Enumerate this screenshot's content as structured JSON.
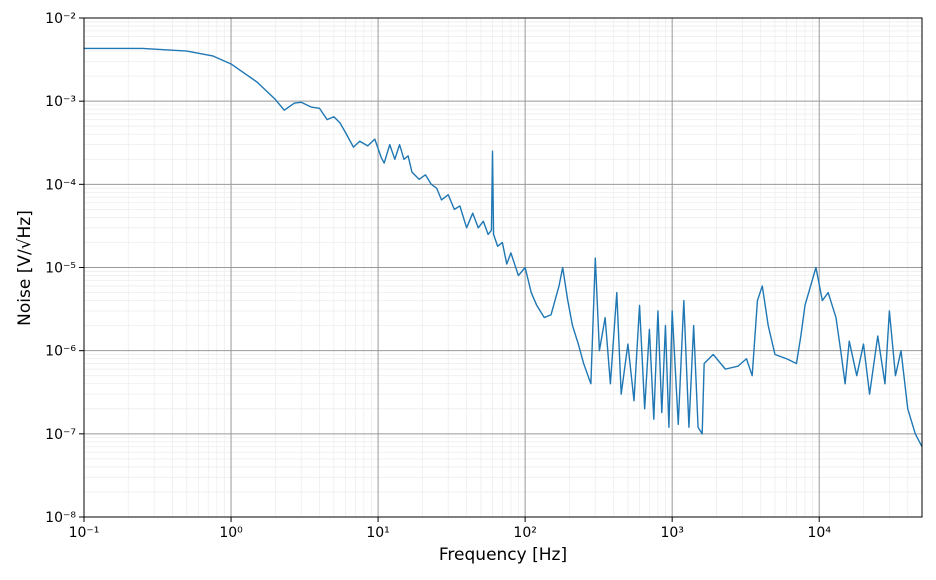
{
  "chart_data": {
    "type": "line",
    "xlabel": "Frequency [Hz]",
    "ylabel": "Noise [V/√Hz]",
    "log_x": true,
    "log_y": true,
    "grid": true,
    "minor_grid": true,
    "color": "#1f77b4",
    "xlim": [
      0.1,
      50000
    ],
    "ylim": [
      1e-08,
      0.01
    ],
    "xticks": [
      {
        "value": 0.1,
        "label": "10⁻¹"
      },
      {
        "value": 1,
        "label": "10⁰"
      },
      {
        "value": 10,
        "label": "10¹"
      },
      {
        "value": 100,
        "label": "10²"
      },
      {
        "value": 1000,
        "label": "10³"
      },
      {
        "value": 10000,
        "label": "10⁴"
      }
    ],
    "yticks": [
      {
        "value": 1e-08,
        "label": "10⁻⁸"
      },
      {
        "value": 1e-07,
        "label": "10⁻⁷"
      },
      {
        "value": 1e-06,
        "label": "10⁻⁶"
      },
      {
        "value": 1e-05,
        "label": "10⁻⁵"
      },
      {
        "value": 0.0001,
        "label": "10⁻⁴"
      },
      {
        "value": 0.001,
        "label": "10⁻³"
      },
      {
        "value": 0.01,
        "label": "10⁻²"
      }
    ],
    "x": [
      0.1,
      0.25,
      0.5,
      0.75,
      1,
      1.5,
      2,
      2.3,
      2.7,
      3,
      3.5,
      4,
      4.5,
      5,
      5.5,
      6,
      6.8,
      7.5,
      8.5,
      9.5,
      10.5,
      11,
      12,
      13,
      14,
      15,
      16,
      17,
      19,
      21,
      23,
      25,
      27,
      30,
      33,
      36,
      40,
      44,
      48,
      52,
      56,
      59,
      60,
      61,
      65,
      70,
      75,
      80,
      90,
      100,
      110,
      120,
      135,
      150,
      170,
      180,
      195,
      210,
      230,
      250,
      280,
      300,
      320,
      350,
      380,
      420,
      450,
      500,
      550,
      600,
      650,
      700,
      750,
      800,
      850,
      900,
      950,
      1000,
      1100,
      1200,
      1300,
      1400,
      1500,
      1600,
      1650,
      1900,
      2300,
      2800,
      3200,
      3500,
      3800,
      4100,
      4500,
      5000,
      6000,
      7000,
      7500,
      8000,
      9500,
      10500,
      11500,
      13000,
      14000,
      15000,
      16000,
      18000,
      20000,
      22000,
      25000,
      28000,
      30000,
      33000,
      36000,
      40000,
      45000,
      50000
    ],
    "values": [
      0.0043,
      0.0043,
      0.004,
      0.0035,
      0.0028,
      0.0017,
      0.00105,
      0.00078,
      0.00095,
      0.00097,
      0.00085,
      0.00082,
      0.0006,
      0.00065,
      0.00055,
      0.00042,
      0.00028,
      0.00033,
      0.00029,
      0.00035,
      0.00021,
      0.00018,
      0.0003,
      0.0002,
      0.0003,
      0.0002,
      0.00022,
      0.00014,
      0.000115,
      0.00013,
      0.0001,
      9e-05,
      6.5e-05,
      7.5e-05,
      5e-05,
      5.5e-05,
      3e-05,
      4.5e-05,
      3e-05,
      3.6e-05,
      2.5e-05,
      2.8e-05,
      0.00025,
      2.5e-05,
      1.8e-05,
      2e-05,
      1.1e-05,
      1.5e-05,
      8e-06,
      1e-05,
      5e-06,
      3.5e-06,
      2.5e-06,
      2.7e-06,
      6e-06,
      1e-05,
      4e-06,
      2e-06,
      1.2e-06,
      7e-07,
      4e-07,
      1.3e-05,
      1e-06,
      2.5e-06,
      4e-07,
      5e-06,
      3e-07,
      1.2e-06,
      2.5e-07,
      3.5e-06,
      2e-07,
      1.8e-06,
      1.5e-07,
      3e-06,
      1.8e-07,
      2e-06,
      1.2e-07,
      3e-06,
      1.3e-07,
      4e-06,
      1.2e-07,
      2e-06,
      1.2e-07,
      1e-07,
      7e-07,
      9e-07,
      6e-07,
      6.5e-07,
      8e-07,
      5e-07,
      4e-06,
      6e-06,
      2e-06,
      9e-07,
      8e-07,
      7e-07,
      1.5e-06,
      3.5e-06,
      1e-05,
      4e-06,
      5e-06,
      2.5e-06,
      1e-06,
      4e-07,
      1.3e-06,
      5e-07,
      1.2e-06,
      3e-07,
      1.5e-06,
      4e-07,
      3e-06,
      5e-07,
      1e-06,
      2e-07,
      1e-07,
      7e-08
    ]
  }
}
